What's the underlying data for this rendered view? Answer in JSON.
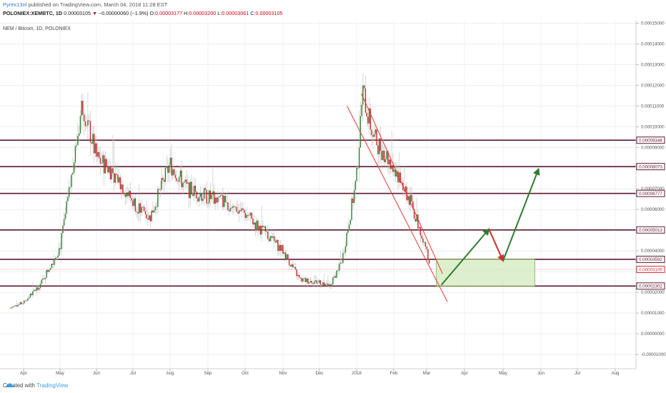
{
  "header": {
    "user": "Pyrex13nl",
    "published": "published on TradingView.com, March 04, 2018 11:28 EST",
    "symbol": "POLONIEX:XEMBTC, 1D",
    "last": "0.00003105",
    "change": "−0.00000060 (−1.9%)",
    "o_label": "O:",
    "o": "0.00003177",
    "h_label": "H:",
    "h": "0.00003200",
    "l_label": "L:",
    "l": "0.00003061",
    "c_label": "C:",
    "c": "0.00003105"
  },
  "chart_title": "NEM / Bitcoin, 1D, POLONIEX",
  "footer": {
    "created": "Created with",
    "brand": "TradingView"
  },
  "colors": {
    "up": "#2e7d32",
    "down": "#c62828",
    "wick": "#bdbdbd",
    "level": "#5d1a2e",
    "channel": "#e53935",
    "zone_fill": "#d7ecc4",
    "zone_stroke": "#7cb342",
    "arrow_up": "#2e7d32",
    "arrow_down": "#d32f2f",
    "last_label": "#d32f2f"
  },
  "chart_data": {
    "type": "candlestick",
    "symbol": "XEMBTC",
    "exchange": "POLONIEX",
    "interval": "1D",
    "ylim": [
      -1e-05,
      0.000155
    ],
    "x_ticks": [
      "Apr",
      "May",
      "Jun",
      "Jul",
      "Aug",
      "Sep",
      "Oct",
      "Nov",
      "Dec",
      "2018",
      "Feb",
      "Mar",
      "Apr",
      "May",
      "Jun",
      "Jul",
      "Aug"
    ],
    "y_ticks": [
      "0.00015000",
      "0.00014000",
      "0.00013000",
      "0.00012000",
      "0.00011000",
      "0.00010000",
      "0.00009000",
      "0.00008000",
      "0.00007000",
      "0.00006000",
      "0.00005000",
      "0.00004000",
      "0.00003000",
      "0.00002000",
      "0.00001000",
      "0.00000000",
      "-0.00001000"
    ],
    "closes_monthly": {
      "x": [
        "Mar 20",
        "Apr 1",
        "Apr 15",
        "May 1",
        "May 10",
        "May 20",
        "Jun 1",
        "Jun 15",
        "Jul 1",
        "Jul 15",
        "Aug 1",
        "Aug 15",
        "Sep 1",
        "Sep 15",
        "Oct 1",
        "Oct 15",
        "Nov 1",
        "Nov 15",
        "Dec 1",
        "Dec 10",
        "Dec 20",
        "Jan 1",
        "Jan 6",
        "Jan 15",
        "Feb 1",
        "Feb 15",
        "Mar 1",
        "Mar 4"
      ],
      "values": [
        1.25e-05,
        1.5e-05,
        2.4e-05,
        4.2e-05,
        7.2e-05,
        0.000112,
        8.5e-05,
        7.8e-05,
        6.4e-05,
        5.6e-05,
        8.2e-05,
        7e-05,
        6.6e-05,
        6.4e-05,
        5.8e-05,
        5e-05,
        4e-05,
        2.6e-05,
        2.5e-05,
        2.3e-05,
        3.6e-05,
        7.5e-05,
        0.000117,
        9.5e-05,
        8.1e-05,
        6.4e-05,
        4.1e-05,
        3.105e-05
      ]
    },
    "levels": [
      9.348e-05,
      8.073e-05,
      6.777e-05,
      5.013e-05,
      3.592e-05,
      2.302e-05
    ],
    "level_labels": [
      "0.00009348",
      "0.00008073",
      "0.00006777",
      "0.00005013",
      "0.00003592",
      "0.00002302"
    ],
    "last_price": 3.105e-05,
    "last_price_label": "0.00003105",
    "channel": {
      "upper": [
        [
          "Jan 5",
          0.000116
        ],
        [
          "Mar 14",
          2.9e-05
        ]
      ],
      "lower": [
        [
          "Dec 24",
          0.00011
        ],
        [
          "Mar 18",
          1.54e-05
        ]
      ]
    },
    "zone": {
      "from": "Mar 9",
      "to": "May 27",
      "top": 3.592e-05,
      "bottom": 2.302e-05
    },
    "projection": [
      [
        "Mar 13",
        2.35e-05
      ],
      [
        "Apr 20",
        5.05e-05
      ],
      [
        "May 1",
        3.52e-05
      ],
      [
        "May 30",
        7.95e-05
      ]
    ]
  }
}
